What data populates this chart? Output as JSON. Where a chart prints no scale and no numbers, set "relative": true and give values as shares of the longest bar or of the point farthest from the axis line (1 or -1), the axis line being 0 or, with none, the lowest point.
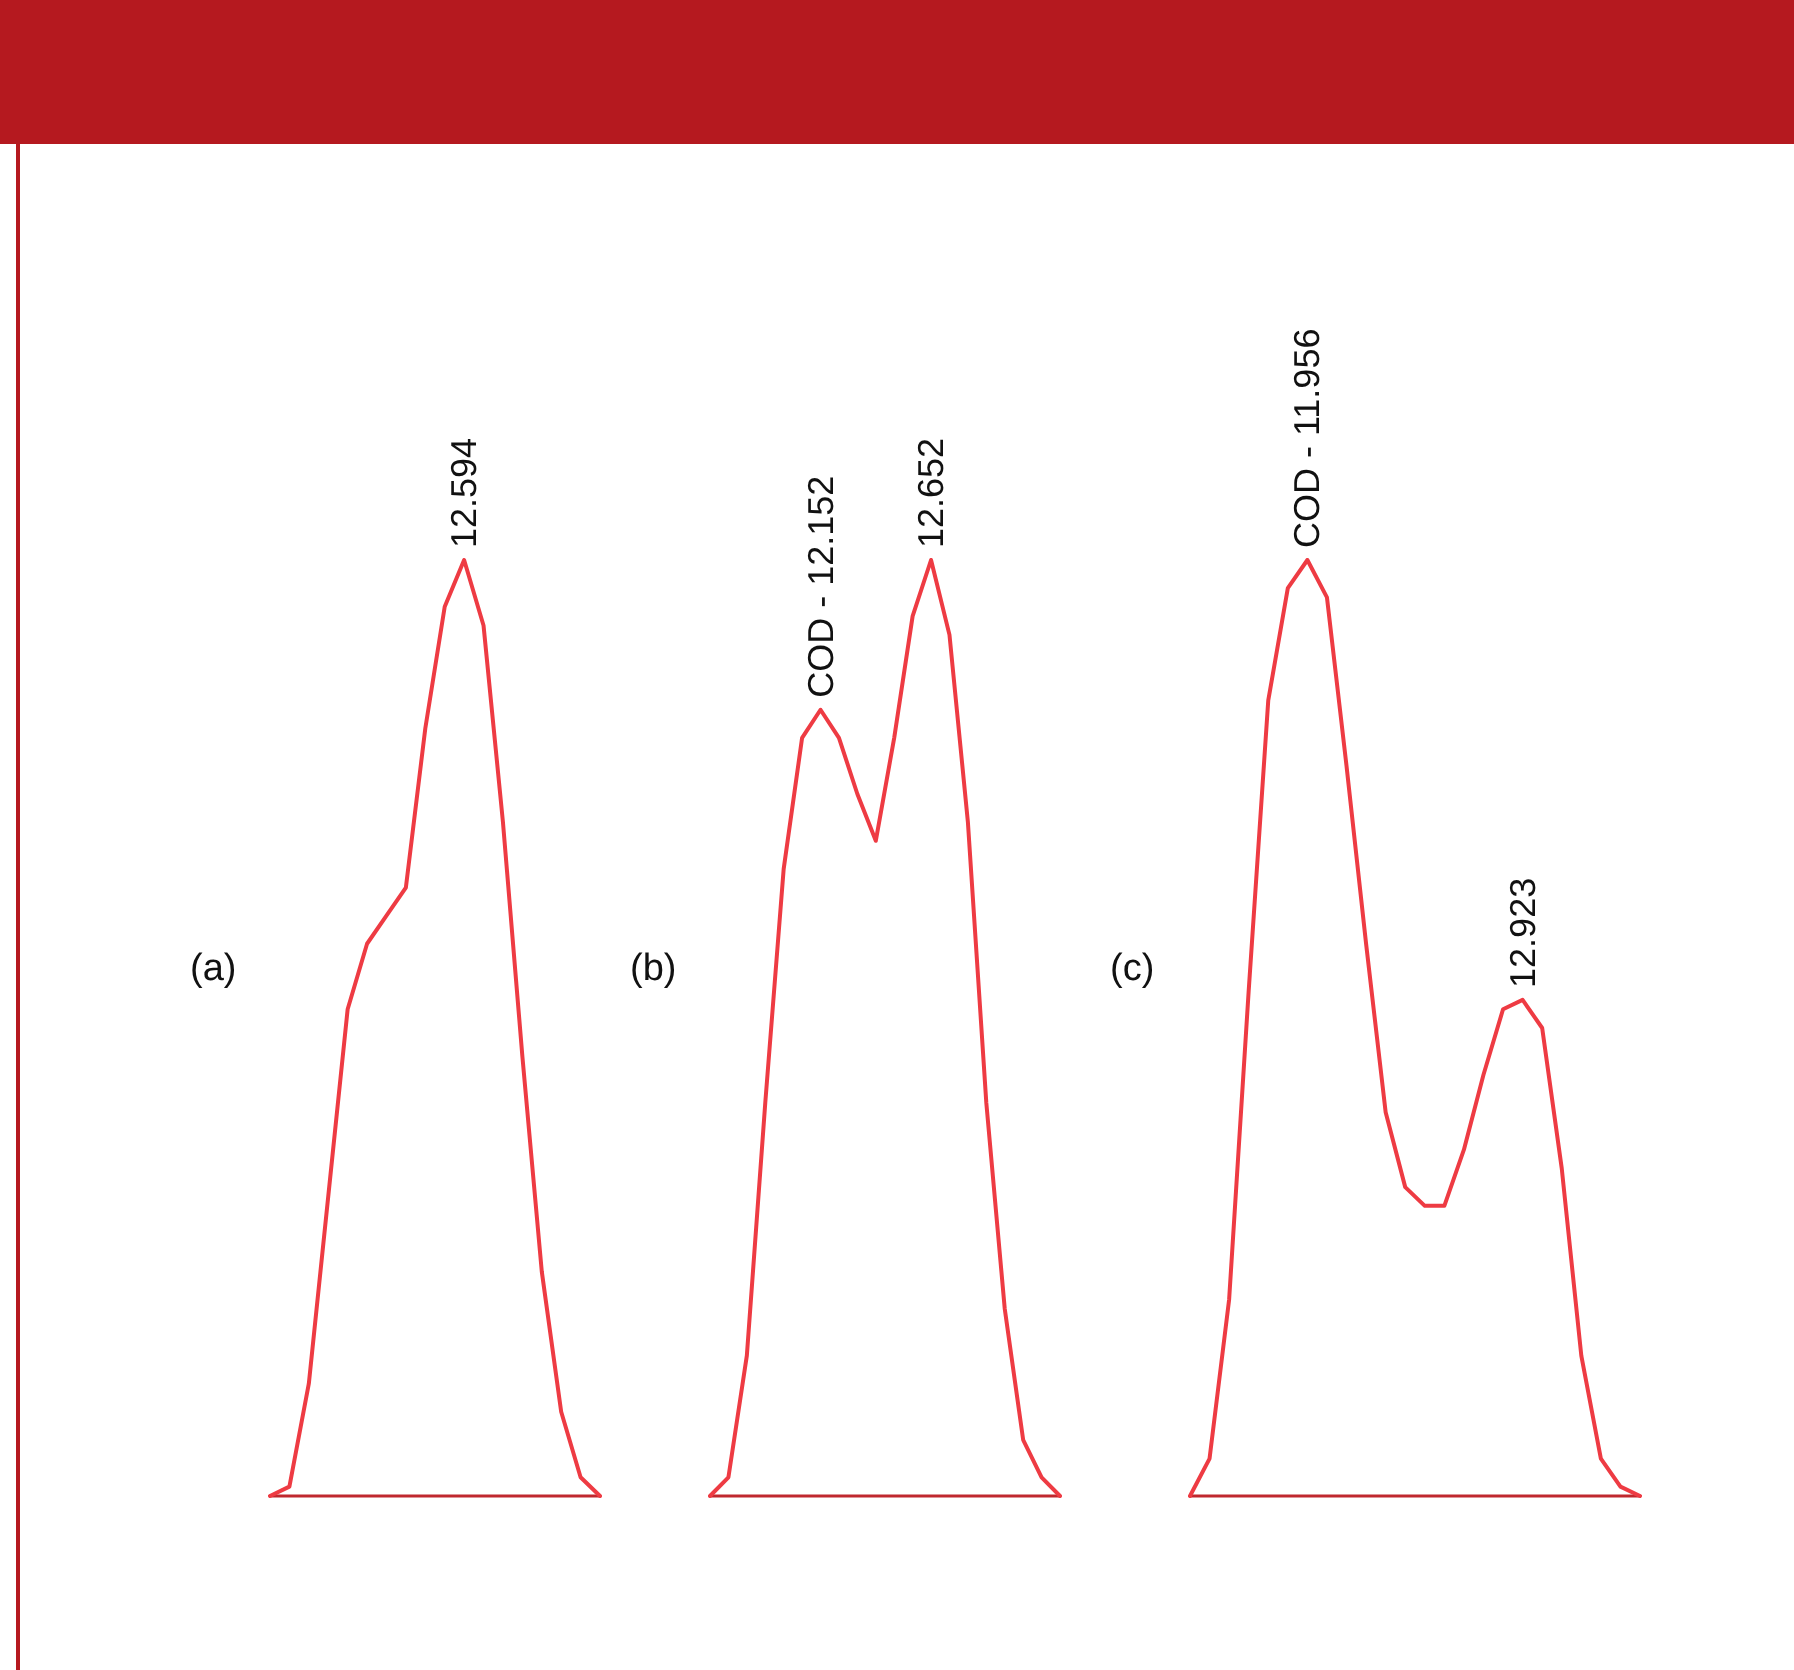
{
  "chart_data": [
    {
      "type": "line",
      "relative": true,
      "categories": [
        null,
        null,
        null,
        null,
        null,
        null,
        null,
        null,
        null,
        null,
        null,
        null,
        null,
        null,
        null,
        null,
        null,
        null
      ],
      "series": [
        {
          "color": "#ee3b43",
          "values": [
            0,
            0.01,
            0.12,
            0.32,
            0.52,
            0.59,
            0.62,
            0.65,
            0.82,
            0.95,
            1,
            0.93,
            0.72,
            0.47,
            0.24,
            0.09,
            0.02,
            0
          ]
        }
      ],
      "annotations": [
        "(a)",
        {
          "text": "12.594",
          "y": 1
        }
      ],
      "grid": false,
      "marker": "none",
      "line_style": "solid"
    },
    {
      "type": "line",
      "relative": true,
      "categories": [
        null,
        null,
        null,
        null,
        null,
        null,
        null,
        null,
        null,
        null,
        null,
        null,
        null,
        null,
        null,
        null,
        null,
        null,
        null,
        null
      ],
      "series": [
        {
          "color": "#ee3b43",
          "values": [
            0,
            0.02,
            0.15,
            0.42,
            0.67,
            0.81,
            0.84,
            0.81,
            0.75,
            0.7,
            0.81,
            0.94,
            1,
            0.92,
            0.72,
            0.42,
            0.2,
            0.06,
            0.02,
            0
          ]
        }
      ],
      "annotations": [
        "(b)",
        {
          "text": "COD - 12.152",
          "y": 0.84
        },
        {
          "text": "12.652",
          "y": 1
        }
      ],
      "grid": false,
      "marker": "none",
      "line_style": "solid"
    },
    {
      "type": "line",
      "relative": true,
      "categories": [
        null,
        null,
        null,
        null,
        null,
        null,
        null,
        null,
        null,
        null,
        null,
        null,
        null,
        null,
        null,
        null,
        null,
        null,
        null,
        null,
        null,
        null,
        null,
        null
      ],
      "series": [
        {
          "color": "#ee3b43",
          "values": [
            0,
            0.04,
            0.21,
            0.54,
            0.85,
            0.97,
            1,
            0.96,
            0.78,
            0.59,
            0.41,
            0.33,
            0.31,
            0.31,
            0.37,
            0.45,
            0.52,
            0.53,
            0.5,
            0.35,
            0.15,
            0.04,
            0.01,
            0
          ]
        }
      ],
      "annotations": [
        "(c)",
        {
          "text": "COD - 11.956",
          "y": 1
        },
        {
          "text": "12.923",
          "y": 0.53
        }
      ],
      "grid": false,
      "marker": "none",
      "line_style": "solid"
    }
  ]
}
